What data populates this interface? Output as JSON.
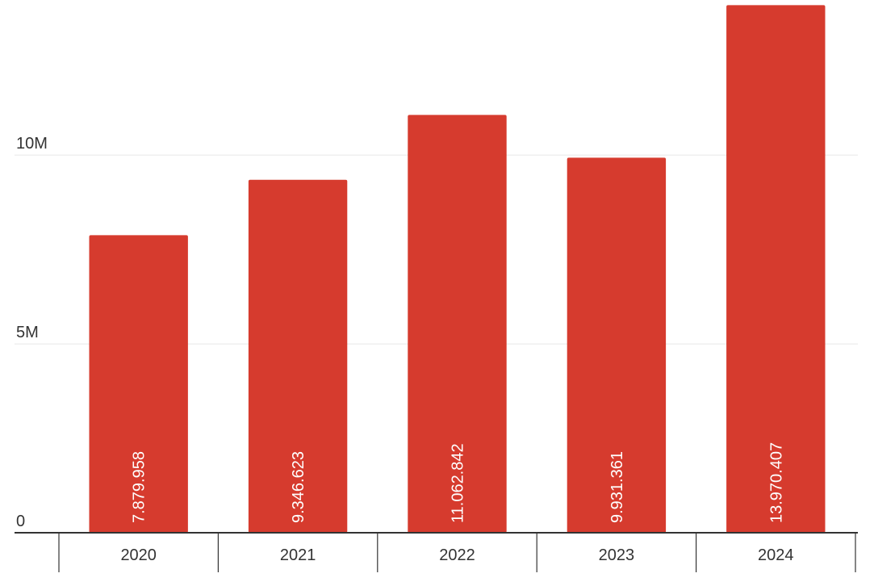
{
  "chart_data": {
    "type": "bar",
    "categories": [
      "2020",
      "2021",
      "2022",
      "2023",
      "2024"
    ],
    "values": [
      7879958,
      9346623,
      11062842,
      9931361,
      13970407
    ],
    "data_labels": [
      "7.879.958",
      "9.346.623",
      "11.062.842",
      "9.931.361",
      "13.970.407"
    ],
    "y_ticks": [
      {
        "value": 0,
        "label": "0"
      },
      {
        "value": 5000000,
        "label": "5M"
      },
      {
        "value": 10000000,
        "label": "10M"
      }
    ],
    "ylim": [
      0,
      14000000
    ],
    "grid": true,
    "colors": {
      "bar": "#d63b2e",
      "grid": "#e6e6e6",
      "axis": "#333333",
      "data_label": "#ffffff"
    }
  }
}
